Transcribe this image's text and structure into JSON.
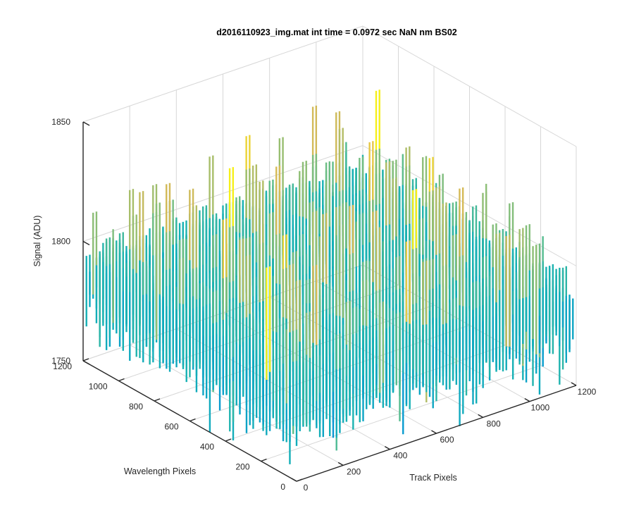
{
  "chart_data": {
    "type": "surface",
    "title": "d2016110923_img.mat int time = 0.0972 sec  NaN nm BS02",
    "xlabel": "Track Pixels",
    "ylabel": "Wavelength Pixels",
    "zlabel": "Signal (ADU)",
    "xlim": [
      0,
      1200
    ],
    "ylim": [
      0,
      1200
    ],
    "zlim": [
      1750,
      1850
    ],
    "x_ticks": [
      "0",
      "200",
      "400",
      "600",
      "800",
      "1000",
      "1200"
    ],
    "y_ticks": [
      "0",
      "200",
      "400",
      "600",
      "800",
      "1000",
      "1200"
    ],
    "z_ticks": [
      "1750",
      "1800",
      "1850"
    ],
    "grid": true,
    "colormap": "parula",
    "surface_stats": {
      "mean": 1790,
      "min_approx": 1760,
      "max_approx": 1835
    }
  }
}
